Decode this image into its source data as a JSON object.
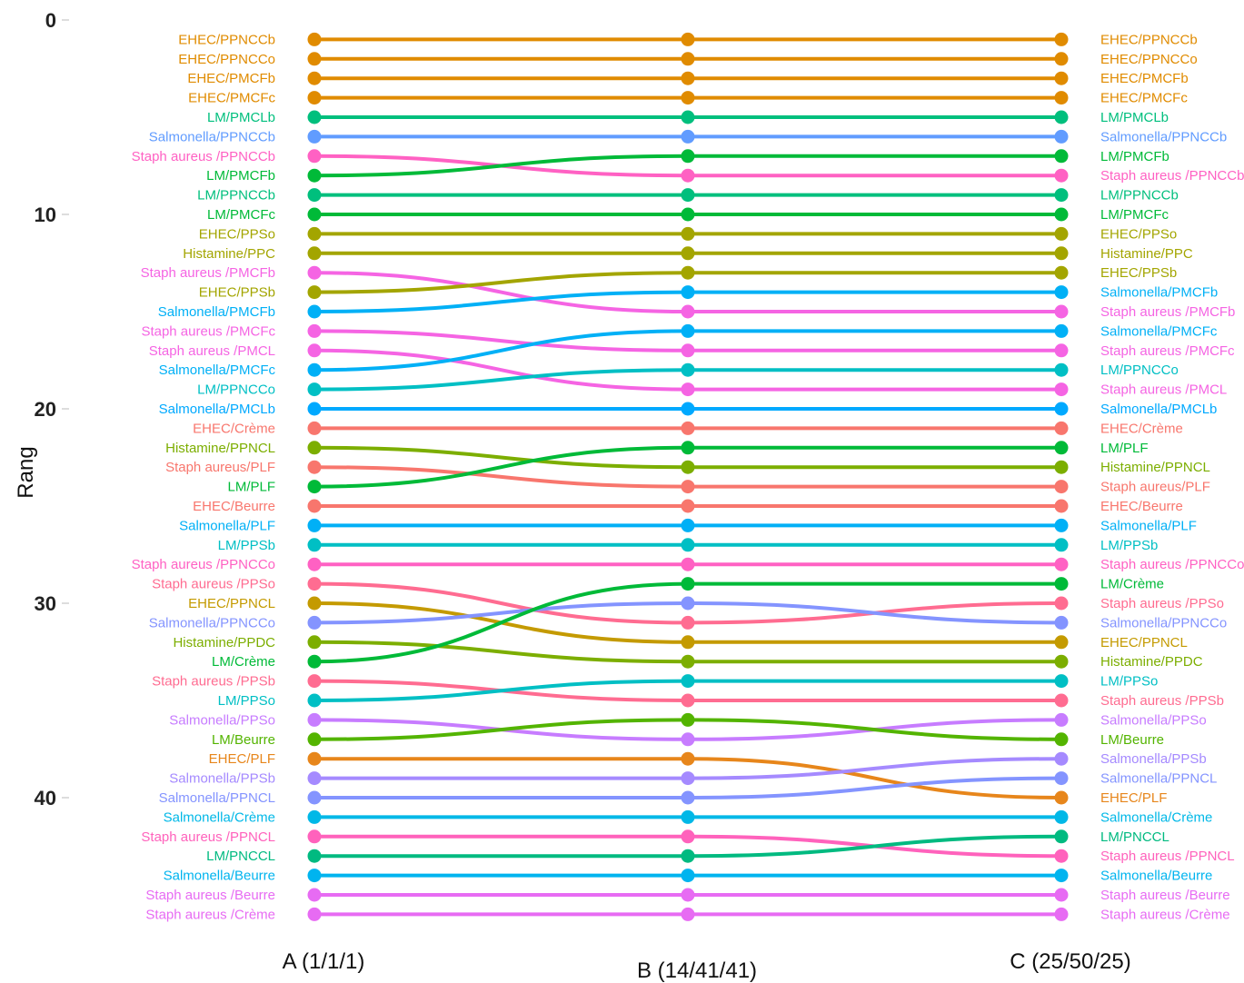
{
  "chart_data": {
    "type": "line",
    "title": "",
    "xlabel": "",
    "ylabel": "Rang",
    "categories": [
      "A (1/1/1)",
      "B (14/41/41)",
      "C (25/50/25)"
    ],
    "ylim": [
      0,
      46
    ],
    "y_reversed": true,
    "yticks": [
      0,
      10,
      20,
      30,
      40
    ],
    "grid": false,
    "series": [
      {
        "name": "EHEC/PPNCCb",
        "color": "#E08B00",
        "ranks": [
          1,
          1,
          1
        ]
      },
      {
        "name": "EHEC/PPNCCo",
        "color": "#E08B00",
        "ranks": [
          2,
          2,
          2
        ]
      },
      {
        "name": "EHEC/PMCFb",
        "color": "#E08B00",
        "ranks": [
          3,
          3,
          3
        ]
      },
      {
        "name": "EHEC/PMCFc",
        "color": "#E08B00",
        "ranks": [
          4,
          4,
          4
        ]
      },
      {
        "name": "LM/PMCLb",
        "color": "#00BF7D",
        "ranks": [
          5,
          5,
          5
        ]
      },
      {
        "name": "Salmonella/PPNCCb",
        "color": "#619CFF",
        "ranks": [
          6,
          6,
          6
        ]
      },
      {
        "name": "Staph aureus /PPNCCb",
        "color": "#FF61C3",
        "ranks": [
          7,
          8,
          8
        ]
      },
      {
        "name": "LM/PMCFb",
        "color": "#00BA38",
        "ranks": [
          8,
          7,
          7
        ]
      },
      {
        "name": "LM/PPNCCb",
        "color": "#00BF7D",
        "ranks": [
          9,
          9,
          9
        ]
      },
      {
        "name": "LM/PMCFc",
        "color": "#00BA38",
        "ranks": [
          10,
          10,
          10
        ]
      },
      {
        "name": "EHEC/PPSo",
        "color": "#A3A500",
        "ranks": [
          11,
          11,
          11
        ]
      },
      {
        "name": "Histamine/PPC",
        "color": "#A3A500",
        "ranks": [
          12,
          12,
          12
        ]
      },
      {
        "name": "Staph aureus /PMCFb",
        "color": "#F564E3",
        "ranks": [
          13,
          15,
          15
        ]
      },
      {
        "name": "EHEC/PPSb",
        "color": "#A3A500",
        "ranks": [
          14,
          13,
          13
        ]
      },
      {
        "name": "Salmonella/PMCFb",
        "color": "#00B0F6",
        "ranks": [
          15,
          14,
          14
        ]
      },
      {
        "name": "Staph aureus /PMCFc",
        "color": "#F564E3",
        "ranks": [
          16,
          17,
          17
        ]
      },
      {
        "name": "Staph aureus /PMCL",
        "color": "#F564E3",
        "ranks": [
          17,
          19,
          19
        ]
      },
      {
        "name": "Salmonella/PMCFc",
        "color": "#00B0F6",
        "ranks": [
          18,
          16,
          16
        ]
      },
      {
        "name": "LM/PPNCCo",
        "color": "#00BFC4",
        "ranks": [
          19,
          18,
          18
        ]
      },
      {
        "name": "Salmonella/PMCLb",
        "color": "#00A9FF",
        "ranks": [
          20,
          20,
          20
        ]
      },
      {
        "name": "EHEC/Crème",
        "color": "#F8766D",
        "ranks": [
          21,
          21,
          21
        ]
      },
      {
        "name": "Histamine/PPNCL",
        "color": "#7CAE00",
        "ranks": [
          22,
          23,
          23
        ]
      },
      {
        "name": "Staph aureus/PLF",
        "color": "#F8766D",
        "ranks": [
          23,
          24,
          24
        ]
      },
      {
        "name": "LM/PLF",
        "color": "#00BA38",
        "ranks": [
          24,
          22,
          22
        ]
      },
      {
        "name": "EHEC/Beurre",
        "color": "#F8766D",
        "ranks": [
          25,
          25,
          25
        ]
      },
      {
        "name": "Salmonella/PLF",
        "color": "#00B0F6",
        "ranks": [
          26,
          26,
          26
        ]
      },
      {
        "name": "LM/PPSb",
        "color": "#00BFC4",
        "ranks": [
          27,
          27,
          27
        ]
      },
      {
        "name": "Staph aureus /PPNCCo",
        "color": "#FF61C3",
        "ranks": [
          28,
          28,
          28
        ]
      },
      {
        "name": "Staph aureus /PPSo",
        "color": "#FF6C91",
        "ranks": [
          29,
          31,
          30
        ]
      },
      {
        "name": "EHEC/PPNCL",
        "color": "#C49A00",
        "ranks": [
          30,
          32,
          32
        ]
      },
      {
        "name": "Salmonella/PPNCCo",
        "color": "#8494FF",
        "ranks": [
          31,
          30,
          31
        ]
      },
      {
        "name": "Histamine/PPDC",
        "color": "#7CAE00",
        "ranks": [
          32,
          33,
          33
        ]
      },
      {
        "name": "LM/Crème",
        "color": "#00BA38",
        "ranks": [
          33,
          29,
          29
        ]
      },
      {
        "name": "Staph aureus /PPSb",
        "color": "#FF6C91",
        "ranks": [
          34,
          35,
          35
        ]
      },
      {
        "name": "LM/PPSo",
        "color": "#00BFC4",
        "ranks": [
          35,
          34,
          34
        ]
      },
      {
        "name": "Salmonella/PPSo",
        "color": "#C77CFF",
        "ranks": [
          36,
          37,
          36
        ]
      },
      {
        "name": "LM/Beurre",
        "color": "#53B400",
        "ranks": [
          37,
          36,
          37
        ]
      },
      {
        "name": "EHEC/PLF",
        "color": "#E7861B",
        "ranks": [
          38,
          38,
          40
        ]
      },
      {
        "name": "Salmonella/PPSb",
        "color": "#A58AFF",
        "ranks": [
          39,
          39,
          38
        ]
      },
      {
        "name": "Salmonella/PPNCL",
        "color": "#8494FF",
        "ranks": [
          40,
          40,
          39
        ]
      },
      {
        "name": "Salmonella/Crème",
        "color": "#00B8E7",
        "ranks": [
          41,
          41,
          41
        ]
      },
      {
        "name": "Staph aureus /PPNCL",
        "color": "#FF62BC",
        "ranks": [
          42,
          42,
          43
        ]
      },
      {
        "name": "LM/PNCCL",
        "color": "#00BA80",
        "ranks": [
          43,
          43,
          42
        ]
      },
      {
        "name": "Salmonella/Beurre",
        "color": "#00B4EF",
        "ranks": [
          44,
          44,
          44
        ]
      },
      {
        "name": "Staph aureus /Beurre",
        "color": "#E76BF3",
        "ranks": [
          45,
          45,
          45
        ]
      },
      {
        "name": "Staph aureus /Crème",
        "color": "#E76BF3",
        "ranks": [
          46,
          46,
          46
        ]
      }
    ]
  }
}
